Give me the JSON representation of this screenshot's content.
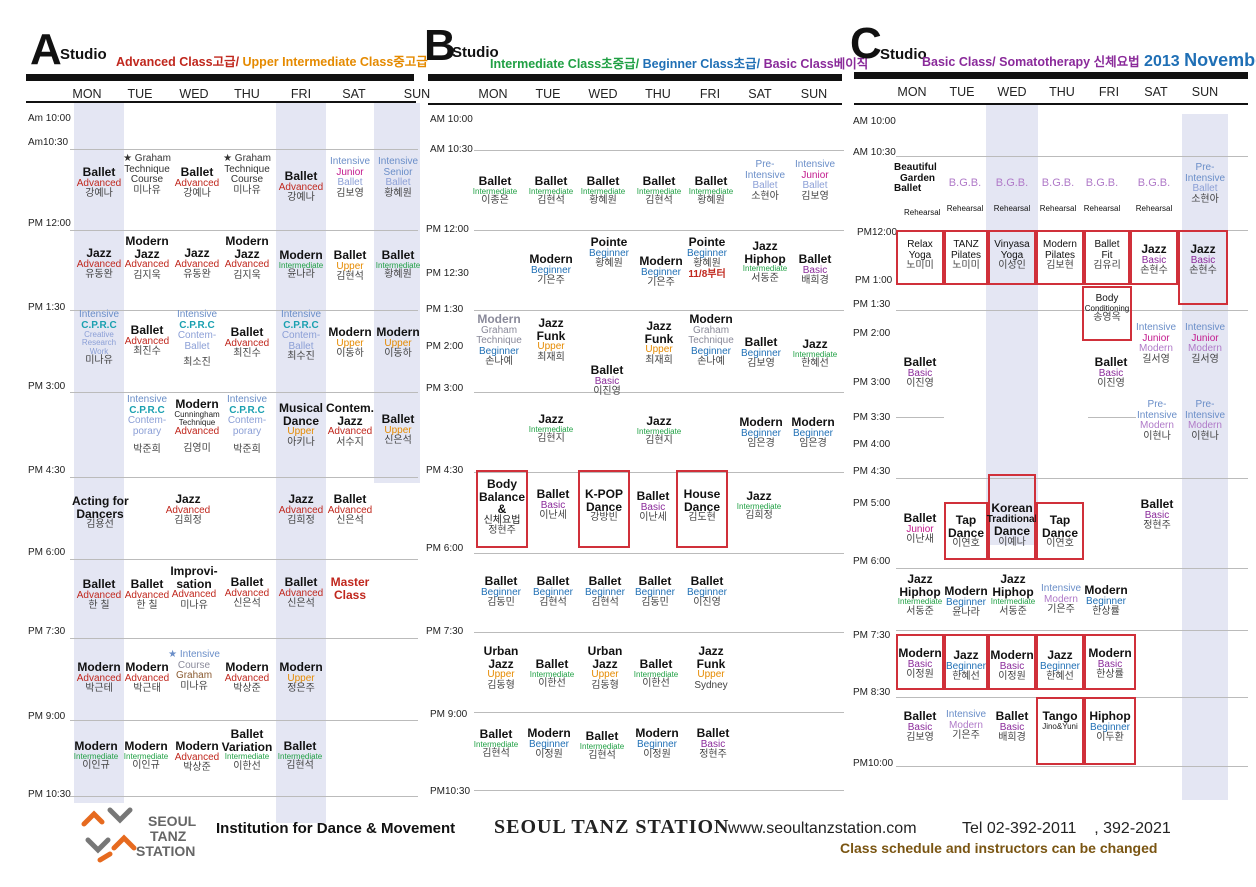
{
  "studios": {
    "a": {
      "letter": "A",
      "word": "Studio",
      "sub1": "Advanced Class고급/",
      "sub2": " Upper Intermediate Class중고급"
    },
    "b": {
      "letter": "B",
      "word": "Studio",
      "sub1": "Intermediate Class초중급/",
      "sub2": " Beginner Class초급/",
      "sub3": " Basic Class베이직"
    },
    "c": {
      "letter": "C",
      "word": "Studio",
      "sub1": "Basic Class/ Somatotherapy 신체요법",
      "sub2": " 2013 ",
      "sub3": "November"
    }
  },
  "days": [
    "MON",
    "TUE",
    "WED",
    "THU",
    "FRI",
    "SAT",
    "SUN"
  ],
  "times": {
    "a": [
      "Am 10:00",
      "Am10:30",
      "PM 12:00",
      "PM 1:30",
      "PM 3:00",
      "PM 4:30",
      "PM 6:00",
      "PM 7:30",
      "PM 9:00",
      "PM 10:30"
    ],
    "b": [
      "AM 10:00",
      "AM 10:30",
      "PM 12:00",
      "PM 12:30",
      "PM 1:30",
      "PM 2:00",
      "PM 3:00",
      "PM 4:30",
      "PM 6:00",
      "PM 7:30",
      "PM 9:00",
      "PM10:30"
    ],
    "c": [
      "AM 10:00",
      "AM 10:30",
      "PM12:00",
      "PM 1:00",
      "PM 1:30",
      "PM 2:00",
      "PM 3:00",
      "PM 3:30",
      "PM 4:00",
      "PM 4:30",
      "PM 5:00",
      "PM 6:00",
      "PM 7:30",
      "PM 8:30",
      "PM10:00"
    ]
  },
  "classes": {
    "a": [
      [
        "Ballet",
        "Advanced",
        "강예나"
      ],
      [
        "★ Graham",
        "Technique",
        "Course",
        "미나유"
      ],
      [
        "Ballet",
        "Advanced",
        "강예나"
      ],
      [
        "★ Graham",
        "Technique",
        "Course",
        "미나유"
      ],
      [
        "Ballet",
        "Advanced",
        "강예나"
      ],
      [
        "Intensive",
        "Junior",
        "Ballet",
        "김보영"
      ],
      [
        "Intensive",
        "Senior",
        "Ballet",
        "황혜원"
      ],
      [
        "Jazz",
        "Advanced",
        "유동완"
      ],
      [
        "Modern",
        "Jazz",
        "Advanced",
        "김지욱"
      ],
      [
        "Jazz",
        "Advanced",
        "유동완"
      ],
      [
        "Modern",
        "Jazz",
        "Advanced",
        "김지욱"
      ],
      [
        "Modern",
        "Intermediate",
        "윤나라"
      ],
      [
        "Ballet",
        "Upper",
        "김현석"
      ],
      [
        "Ballet",
        "Intermediate",
        "황혜원"
      ],
      [
        "Intensive",
        "C.P.R.C",
        "Creative",
        "Research",
        "Work",
        "미나유"
      ],
      [
        "Ballet",
        "Advanced",
        "최진수"
      ],
      [
        "Intensive",
        "C.P.R.C",
        "Contem-",
        "Ballet",
        "최소진"
      ],
      [
        "Ballet",
        "Advanced",
        "최진수"
      ],
      [
        "Intensive",
        "C.P.R.C",
        "Contem-",
        "Ballet",
        "최수진"
      ],
      [
        "Modern",
        "Upper",
        "이동하"
      ],
      [
        "Modern",
        "Upper",
        "이동하"
      ],
      [
        "Intensive",
        "C.P.R.C",
        "Contem-",
        "porary",
        "박준희"
      ],
      [
        "Modern",
        "Cunningham",
        "Technique",
        "Advanced",
        "김영미"
      ],
      [
        "Intensive",
        "C.P.R.C",
        "Contem-",
        "porary",
        "박준희"
      ],
      [
        "Musical",
        "Dance",
        "Upper",
        "아키나"
      ],
      [
        "Contem.",
        "Jazz",
        "Advanced",
        "서수지"
      ],
      [
        "Ballet",
        "Upper",
        "신은석"
      ],
      [
        "Acting for",
        "Dancers",
        "김용선"
      ],
      [
        "Jazz",
        "Advanced",
        "김희정"
      ],
      [
        "Jazz",
        "Advanced",
        "김희정"
      ],
      [
        "Ballet",
        "Advanced",
        "신은석"
      ],
      [
        "Ballet",
        "Advanced",
        "한 칠"
      ],
      [
        "Ballet",
        "Advanced",
        "한 칠"
      ],
      [
        "Improvi-",
        "sation",
        "Advanced",
        "미나유"
      ],
      [
        "Ballet",
        "Advanced",
        "신은석"
      ],
      [
        "Ballet",
        "Advanced",
        "신은석"
      ],
      [
        "Master",
        "Class"
      ],
      [
        "Modern",
        "Advanced",
        "박근테"
      ],
      [
        "Modern",
        "Advanced",
        "박근태"
      ],
      [
        "★ Intensive",
        "Course",
        "Graham",
        "미나유"
      ],
      [
        "Modern",
        "Advanced",
        "박상준"
      ],
      [
        "Modern",
        "Upper",
        "정은주"
      ],
      [
        "Modern",
        "Intermediate",
        "이인규"
      ],
      [
        "Modern",
        "Intermediate",
        "이인규"
      ],
      [
        "Modern",
        "Advanced",
        "박상준"
      ],
      [
        "Ballet",
        "Variation",
        "Intermediate",
        "이한선"
      ],
      [
        "Ballet",
        "Intermediate",
        "김현석"
      ]
    ],
    "b": [
      [
        "Ballet",
        "Intermediate",
        "이종은"
      ],
      [
        "Ballet",
        "Intermediate",
        "김현석"
      ],
      [
        "Ballet",
        "Intermediate",
        "황혜원"
      ],
      [
        "Ballet",
        "Intermediate",
        "김현석"
      ],
      [
        "Ballet",
        "Intermediate",
        "황혜원"
      ],
      [
        "Pre-",
        "Intensive",
        "Ballet",
        "소현아"
      ],
      [
        "Intensive",
        "Junior",
        "Ballet",
        "김보영"
      ],
      [
        "Modern",
        "Beginner",
        "기은주"
      ],
      [
        "Pointe",
        "Beginner",
        "황혜원"
      ],
      [
        "Modern",
        "Beginner",
        "기은주"
      ],
      [
        "Pointe",
        "Beginner",
        "황혜원",
        "11/8부터"
      ],
      [
        "Jazz",
        "Hiphop",
        "Intermediate",
        "서동준"
      ],
      [
        "Ballet",
        "Basic",
        "배희경"
      ],
      [
        "Modern",
        "Graham",
        "Technique",
        "Beginner",
        "손나예"
      ],
      [
        "Jazz",
        "Funk",
        "Upper",
        "최재희"
      ],
      [
        "Ballet",
        "Basic",
        "이진영"
      ],
      [
        "Jazz",
        "Funk",
        "Upper",
        "최재희"
      ],
      [
        "Modern",
        "Graham",
        "Technique",
        "Beginner",
        "손나예"
      ],
      [
        "Ballet",
        "Beginner",
        "김보영"
      ],
      [
        "Jazz",
        "Intermediate",
        "한혜선"
      ],
      [
        "Jazz",
        "Intermediate",
        "김현지"
      ],
      [
        "Jazz",
        "Intermediate",
        "김현지"
      ],
      [
        "Modern",
        "Beginner",
        "임은경"
      ],
      [
        "Modern",
        "Beginner",
        "임은경"
      ],
      [
        "Body",
        "Balance",
        "&",
        "신체요법",
        "정현주"
      ],
      [
        "Ballet",
        "Basic",
        "이난세"
      ],
      [
        "K-POP",
        "Dance",
        "강방빈"
      ],
      [
        "Ballet",
        "Basic",
        "이난세"
      ],
      [
        "House",
        "Dance",
        "김도현"
      ],
      [
        "Jazz",
        "Intermediate",
        "김희정"
      ],
      [
        "Ballet",
        "Beginner",
        "김동민"
      ],
      [
        "Ballet",
        "Beginner",
        "김현석"
      ],
      [
        "Ballet",
        "Beginner",
        "김현석"
      ],
      [
        "Ballet",
        "Beginner",
        "김동민"
      ],
      [
        "Ballet",
        "Beginner",
        "이진영"
      ],
      [
        "Urban",
        "Jazz",
        "Upper",
        "김동형"
      ],
      [
        "Ballet",
        "Intermediate",
        "이한선"
      ],
      [
        "Urban",
        "Jazz",
        "Upper",
        "김동형"
      ],
      [
        "Ballet",
        "Intermediate",
        "이한선"
      ],
      [
        "Jazz",
        "Funk",
        "Upper",
        "Sydney"
      ],
      [
        "Ballet",
        "Intermediate",
        "김현석"
      ],
      [
        "Modern",
        "Beginner",
        "이정원"
      ],
      [
        "Ballet",
        "Intermediate",
        "김현석"
      ],
      [
        "Modern",
        "Beginner",
        "이정원"
      ],
      [
        "Ballet",
        "Basic",
        "정현주"
      ]
    ],
    "c": [
      [
        "Beautiful",
        "Garden",
        "Ballet",
        "Rehearsal"
      ],
      [
        "B.G.B.",
        "Rehearsal"
      ],
      [
        "B.G.B.",
        "Rehearsal"
      ],
      [
        "B.G.B.",
        "Rehearsal"
      ],
      [
        "B.G.B.",
        "Rehearsal"
      ],
      [
        "B.G.B.",
        "Rehearsal"
      ],
      [
        "Pre-",
        "Intensive",
        "Ballet",
        "소현아"
      ],
      [
        "Relax",
        "Yoga",
        "노미미"
      ],
      [
        "TANZ",
        "Pilates",
        "노미미"
      ],
      [
        "Vinyasa",
        "Yoga",
        "이성인"
      ],
      [
        "Modern",
        "Pilates",
        "김보현"
      ],
      [
        "Ballet",
        "Fit",
        "김유리"
      ],
      [
        "Jazz",
        "Basic",
        "손현수"
      ],
      [
        "Jazz",
        "Basic",
        "손현수"
      ],
      [
        "Body",
        "Conditioning",
        "송영옥"
      ],
      [
        "Intensive",
        "Junior",
        "Modern",
        "길서영"
      ],
      [
        "Intensive",
        "Junior",
        "Modern",
        "길서영"
      ],
      [
        "Ballet",
        "Basic",
        "이진영"
      ],
      [
        "Ballet",
        "Basic",
        "이진영"
      ],
      [
        "Pre-",
        "Intensive",
        "Modern",
        "이현나"
      ],
      [
        "Pre-",
        "Intensive",
        "Modern",
        "이현나"
      ],
      [
        "Ballet",
        "Junior",
        "이난새"
      ],
      [
        "Tap",
        "Dance",
        "이연호"
      ],
      [
        "Korean",
        "Traditional",
        "Dance",
        "이예나"
      ],
      [
        "Tap",
        "Dance",
        "이연호"
      ],
      [
        "Ballet",
        "Basic",
        "정현주"
      ],
      [
        "Jazz",
        "Hiphop",
        "Intermediate",
        "서동준"
      ],
      [
        "Modern",
        "Beginner",
        "윤나라"
      ],
      [
        "Jazz",
        "Hiphop",
        "Intermediate",
        "서동준"
      ],
      [
        "Intensive",
        "Modern",
        "기은주"
      ],
      [
        "Modern",
        "Beginner",
        "한상률"
      ],
      [
        "Modern",
        "Basic",
        "이정원"
      ],
      [
        "Jazz",
        "Beginner",
        "한혜선"
      ],
      [
        "Modern",
        "Basic",
        "이정원"
      ],
      [
        "Jazz",
        "Beginner",
        "한혜선"
      ],
      [
        "Modern",
        "Basic",
        "한상률"
      ],
      [
        "Ballet",
        "Basic",
        "김보영"
      ],
      [
        "Intensive",
        "Modern",
        "기은주"
      ],
      [
        "Ballet",
        "Basic",
        "배희경"
      ],
      [
        "Tango",
        "Jino&Yuni"
      ],
      [
        "Hiphop",
        "Beginner",
        "이두환"
      ]
    ]
  },
  "footer": {
    "logo_lines": [
      "SEOUL",
      "TANZ",
      "STATION"
    ],
    "institution": "Institution for Dance & Movement",
    "brand": "SEOUL TANZ STATION",
    "website": "www.seoultanzstation.com",
    "tel": "Tel 02-392-2011    , 392-2021",
    "note": "Class schedule and instructors can be changed"
  },
  "colors": {
    "advanced": "#c0271d",
    "upper": "#e58a00",
    "intermediate": "#20a044",
    "beginner": "#1f6fb5",
    "basic": "#8a2a9a",
    "highlight_box": "#d0303a",
    "band": "#e4e6f3"
  }
}
